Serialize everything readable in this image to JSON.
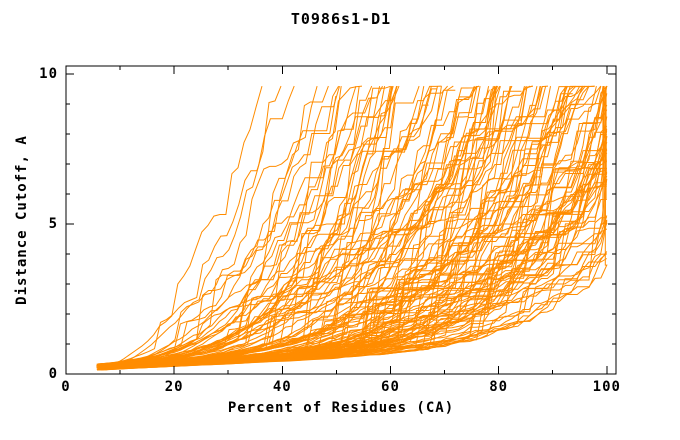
{
  "chart_data": {
    "type": "line",
    "title": "T0986s1-D1",
    "xlabel": "Percent of Residues (CA)",
    "ylabel": "Distance Cutoff, A",
    "xlim": [
      0,
      101.7
    ],
    "ylim": [
      0,
      10.27
    ],
    "x_ticks": {
      "major": [
        0,
        20,
        40,
        60,
        80,
        100
      ],
      "minor": [
        10,
        30,
        50,
        70,
        90
      ]
    },
    "y_ticks": {
      "major": [
        0,
        5,
        10
      ],
      "minor": [
        1,
        2,
        3,
        4,
        6,
        7,
        8,
        9
      ]
    },
    "grid": false,
    "legend": "none",
    "line_color": "#ff8c00",
    "axis_color": "#000000",
    "background": "#ffffff",
    "series_description": "Ensemble of ~140 unlabeled per-model accuracy curves: percent of CA residues (x) fit under a distance cutoff (y, Angstroms). All curves start near (6%, 0.2A). The best model reaches the 9.6A top at ~30-35% of residues; weakest models remain below ~2.5A coverage until ~100% of residues, some jumping vertically at the right edge.",
    "curve_start": {
      "x": [
        5.6,
        7.5
      ],
      "y": [
        0.12,
        0.34
      ]
    },
    "curve_top_y": 9.6,
    "ensemble": {
      "seed": 42,
      "n_curves": 140,
      "end_x_min": 30,
      "end_x_span": 95,
      "end_x_skew": 0.55,
      "shape_p_base": 1.15,
      "shape_p_gain": 4.2,
      "shape_p_rand": 0.8,
      "linear_mix": 0.1,
      "noise": 0.22,
      "jump_prob": 0.05,
      "jump_size": [
        0.4,
        1.7
      ],
      "end_jump_prob": 0.3,
      "max_x": 100
    }
  }
}
